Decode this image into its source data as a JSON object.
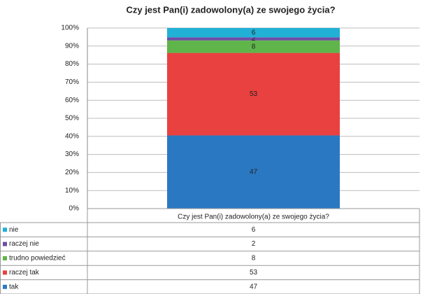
{
  "chart_data": {
    "type": "stacked_bar_100",
    "title": "Czy jest Pan(i) zadowolony(a) ze swojego życia?",
    "categories": [
      "Czy jest Pan(i) zadowolony(a) ze swojego życia?"
    ],
    "series": [
      {
        "name": "tak",
        "color": "#2a78c2",
        "values": [
          47
        ]
      },
      {
        "name": "raczej tak",
        "color": "#e8413f",
        "values": [
          53
        ]
      },
      {
        "name": "trudno powiedzieć",
        "color": "#5fb54a",
        "values": [
          8
        ]
      },
      {
        "name": "raczej nie",
        "color": "#6b4ea3",
        "values": [
          2
        ]
      },
      {
        "name": "nie",
        "color": "#21b0d6",
        "values": [
          6
        ]
      }
    ],
    "ylim": [
      0,
      100
    ],
    "yticks": [
      {
        "value": 0,
        "label": "0%"
      },
      {
        "value": 10,
        "label": "10%"
      },
      {
        "value": 20,
        "label": "20%"
      },
      {
        "value": 30,
        "label": "30%"
      },
      {
        "value": 40,
        "label": "40%"
      },
      {
        "value": 50,
        "label": "50%"
      },
      {
        "value": 60,
        "label": "60%"
      },
      {
        "value": 70,
        "label": "70%"
      },
      {
        "value": 80,
        "label": "80%"
      },
      {
        "value": 90,
        "label": "90%"
      },
      {
        "value": 100,
        "label": "100%"
      }
    ],
    "grid": true,
    "data_table": true
  }
}
